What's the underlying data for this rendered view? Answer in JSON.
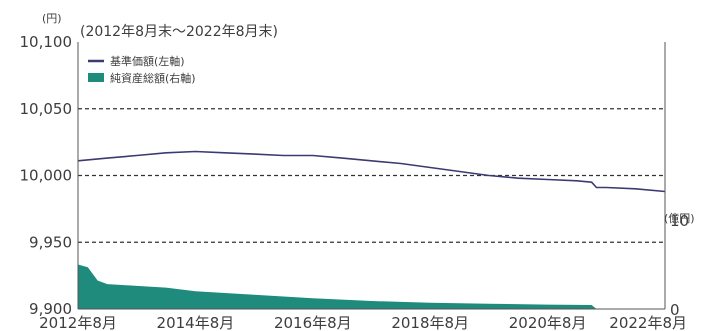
{
  "chart_data": {
    "type": "line",
    "period_label": "(2012年8月末〜2022年8月末)",
    "left_axis": {
      "unit": "(円)",
      "ylim": [
        9900,
        10100
      ],
      "ticks": [
        9900,
        9950,
        10000,
        10050,
        10100
      ],
      "tick_labels": [
        "9,900",
        "9,950",
        "10,000",
        "10,050",
        "10,100"
      ]
    },
    "right_axis": {
      "unit": "(億円)",
      "ylim": [
        0,
        30
      ],
      "ticks": [
        0,
        10
      ],
      "tick_labels": [
        "0",
        "10"
      ]
    },
    "x_axis": {
      "ticks": [
        "2012-08",
        "2014-08",
        "2016-08",
        "2018-08",
        "2020-08",
        "2022-08"
      ],
      "tick_labels": [
        "2012年8月",
        "2014年8月",
        "2016年8月",
        "2018年8月",
        "2020年8月",
        "2022年8月"
      ]
    },
    "grid": "horizontal dashed",
    "legend_position": "top-left",
    "series": [
      {
        "name": "基準価額(左軸)",
        "type": "line",
        "axis": "left",
        "color": "#3b3a72",
        "points": [
          [
            "2012-08",
            10011
          ],
          [
            "2013-02",
            10013
          ],
          [
            "2013-08",
            10015
          ],
          [
            "2014-02",
            10017
          ],
          [
            "2014-08",
            10018
          ],
          [
            "2015-02",
            10017
          ],
          [
            "2015-08",
            10016
          ],
          [
            "2016-02",
            10015
          ],
          [
            "2016-08",
            10015
          ],
          [
            "2017-02",
            10013
          ],
          [
            "2017-08",
            10011
          ],
          [
            "2018-02",
            10009
          ],
          [
            "2018-08",
            10006
          ],
          [
            "2019-02",
            10003
          ],
          [
            "2019-08",
            10000
          ],
          [
            "2020-02",
            9998
          ],
          [
            "2020-08",
            9997
          ],
          [
            "2021-02",
            9996
          ],
          [
            "2021-05",
            9995
          ],
          [
            "2021-06",
            9991
          ],
          [
            "2021-08",
            9991
          ],
          [
            "2022-02",
            9990
          ],
          [
            "2022-08",
            9988
          ]
        ]
      },
      {
        "name": "純資産総額(右軸)",
        "type": "area",
        "axis": "right",
        "color": "#1e8b7d",
        "points": [
          [
            "2012-08",
            5.0
          ],
          [
            "2012-10",
            4.7
          ],
          [
            "2012-12",
            3.2
          ],
          [
            "2013-02",
            2.8
          ],
          [
            "2013-08",
            2.6
          ],
          [
            "2014-02",
            2.4
          ],
          [
            "2014-08",
            2.0
          ],
          [
            "2015-08",
            1.6
          ],
          [
            "2016-08",
            1.2
          ],
          [
            "2017-08",
            0.9
          ],
          [
            "2018-08",
            0.7
          ],
          [
            "2019-08",
            0.6
          ],
          [
            "2020-08",
            0.5
          ],
          [
            "2021-05",
            0.45
          ],
          [
            "2021-06",
            0.0
          ],
          [
            "2022-08",
            0.0
          ]
        ]
      }
    ]
  }
}
